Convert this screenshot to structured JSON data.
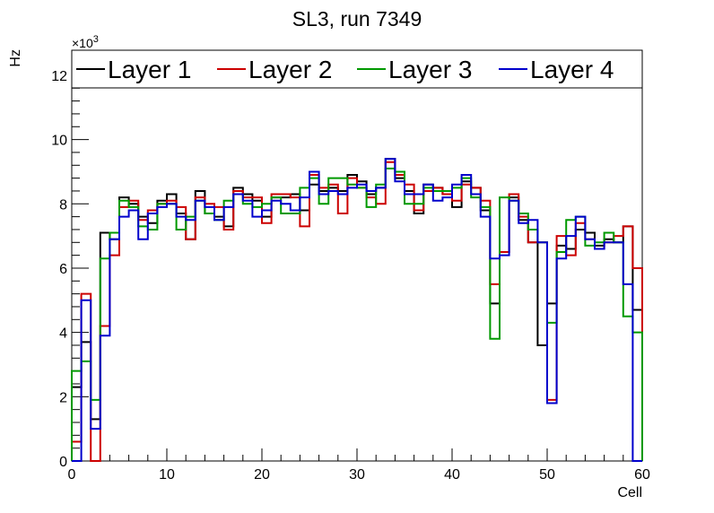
{
  "chart_data": {
    "type": "histogram-step",
    "title": "SL3, run 7349",
    "xlabel": "Cell",
    "ylabel": "Hz",
    "y_multiplier_label": "×10",
    "y_multiplier_exponent": "3",
    "xlim": [
      0,
      60
    ],
    "ylim": [
      0,
      12.5
    ],
    "x_ticks": [
      0,
      10,
      20,
      30,
      40,
      50,
      60
    ],
    "y_ticks": [
      0,
      2,
      4,
      6,
      8,
      10,
      12
    ],
    "bin_edges_start": 0,
    "bin_width": 1,
    "legend_position": "top",
    "series": [
      {
        "name": "Layer 1",
        "color": "#000000",
        "values": [
          2.3,
          3.7,
          1.3,
          7.1,
          6.9,
          8.2,
          8.0,
          7.6,
          7.4,
          8.1,
          8.3,
          7.7,
          6.9,
          8.4,
          7.7,
          7.6,
          7.3,
          8.5,
          8.3,
          8.1,
          7.6,
          8.2,
          8.2,
          8.3,
          7.8,
          8.6,
          8.4,
          8.5,
          8.4,
          8.9,
          8.7,
          8.3,
          8.5,
          9.4,
          8.8,
          8.4,
          7.7,
          8.6,
          8.5,
          8.3,
          7.9,
          8.7,
          8.5,
          7.8,
          4.9,
          6.5,
          8.2,
          7.5,
          6.8,
          3.6,
          4.9,
          6.7,
          6.6,
          7.2,
          7.1,
          6.7,
          6.9,
          6.8,
          7.3,
          4.7
        ]
      },
      {
        "name": "Layer 2",
        "color": "#cc0000",
        "values": [
          0.6,
          5.2,
          0.0,
          4.2,
          6.4,
          7.9,
          8.1,
          7.5,
          7.8,
          8.0,
          8.1,
          7.9,
          6.9,
          8.2,
          8.0,
          7.9,
          7.2,
          8.4,
          8.2,
          8.2,
          7.4,
          8.3,
          8.3,
          8.2,
          7.3,
          8.9,
          8.5,
          8.6,
          7.7,
          8.8,
          8.5,
          8.2,
          8.0,
          9.3,
          8.9,
          8.6,
          7.8,
          8.4,
          8.5,
          8.3,
          8.1,
          8.6,
          8.5,
          8.1,
          5.5,
          6.5,
          8.3,
          7.6,
          6.8,
          6.8,
          1.9,
          7.0,
          6.4,
          7.4,
          6.9,
          6.6,
          6.8,
          7.0,
          7.3,
          6.0
        ]
      },
      {
        "name": "Layer 3",
        "color": "#009900",
        "values": [
          2.8,
          3.1,
          1.9,
          6.3,
          7.1,
          8.1,
          7.9,
          7.3,
          7.2,
          8.0,
          8.0,
          7.2,
          7.6,
          8.1,
          7.7,
          7.5,
          8.1,
          8.3,
          8.0,
          7.9,
          8.0,
          8.2,
          7.7,
          7.7,
          8.5,
          8.8,
          8.0,
          8.8,
          8.8,
          8.6,
          8.5,
          7.9,
          8.6,
          9.1,
          9.0,
          8.0,
          8.0,
          8.5,
          8.4,
          8.4,
          8.5,
          8.8,
          8.2,
          7.9,
          3.8,
          8.2,
          8.1,
          7.7,
          7.2,
          6.8,
          4.3,
          6.5,
          7.5,
          7.6,
          6.7,
          6.8,
          7.1,
          6.8,
          4.5,
          4.0
        ]
      },
      {
        "name": "Layer 4",
        "color": "#0000cc",
        "values": [
          0.0,
          5.0,
          1.0,
          3.9,
          6.9,
          7.6,
          7.8,
          6.9,
          7.7,
          7.9,
          8.0,
          7.6,
          7.5,
          8.1,
          7.9,
          7.5,
          7.9,
          8.3,
          8.1,
          7.6,
          7.8,
          8.1,
          8.0,
          7.8,
          8.2,
          9.0,
          8.3,
          8.4,
          8.3,
          8.5,
          8.6,
          8.4,
          8.5,
          9.4,
          8.7,
          8.3,
          8.3,
          8.6,
          8.1,
          8.2,
          8.6,
          8.9,
          8.3,
          7.6,
          6.3,
          6.4,
          8.1,
          7.4,
          7.5,
          6.8,
          1.8,
          6.3,
          7.0,
          7.6,
          6.9,
          6.6,
          6.8,
          6.8,
          5.5,
          0.0
        ]
      }
    ]
  }
}
